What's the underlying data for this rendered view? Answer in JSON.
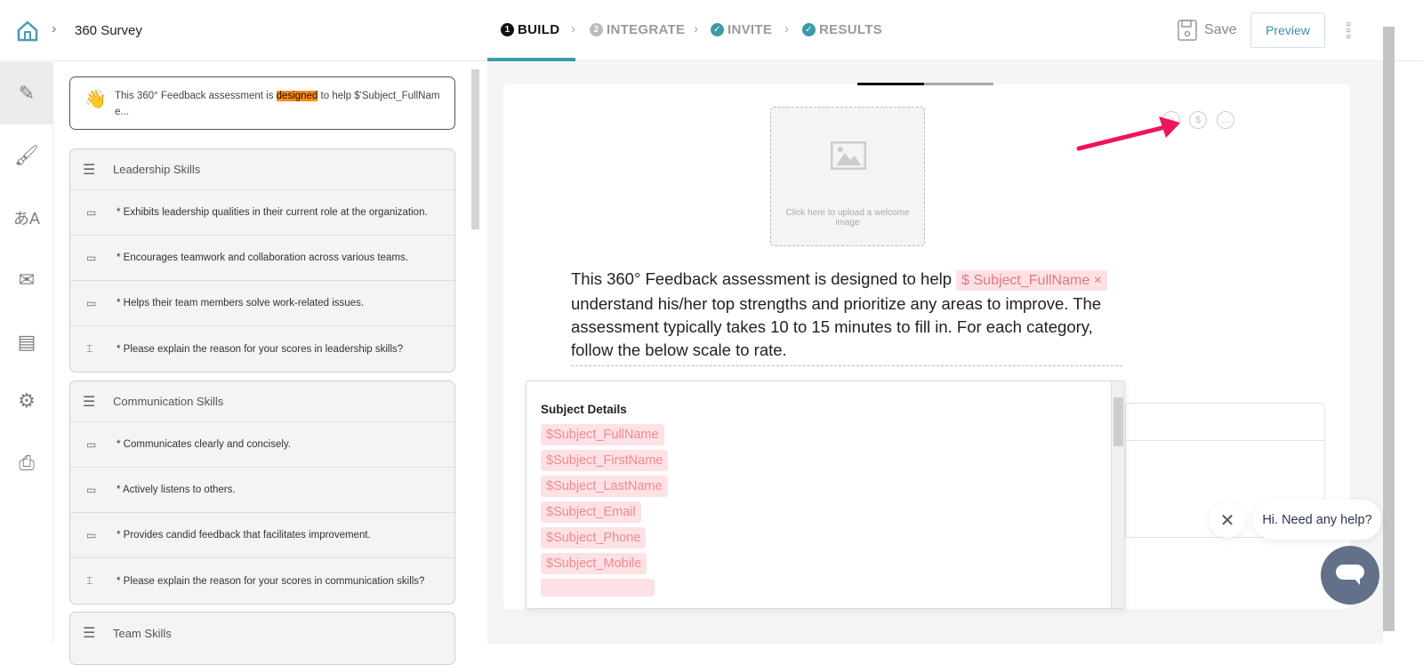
{
  "header": {
    "home_icon": "home-icon",
    "breadcrumb_title": "360 Survey",
    "steps": [
      {
        "num": "1",
        "label": "BUILD",
        "state": "active"
      },
      {
        "num": "2",
        "label": "INTEGRATE",
        "state": "pending"
      },
      {
        "num": "✓",
        "label": "INVITE",
        "state": "done"
      },
      {
        "num": "✓",
        "label": "RESULTS",
        "state": "done"
      }
    ],
    "save_label": "Save",
    "preview_label": "Preview"
  },
  "colors": {
    "accent": "#3b9ba6",
    "chip_bg": "#fde1e4",
    "chip_text": "#f08a94",
    "highlight": "#ff8c1a",
    "arrow": "#f0145a",
    "chat": "#637089"
  },
  "rail": [
    "build-icon",
    "theme-icon",
    "translate-icon",
    "email-icon",
    "report-icon",
    "settings-icon",
    "print-icon"
  ],
  "sidebar": {
    "welcome": {
      "before": "This 360° Feedback assessment is ",
      "highlight": "designed",
      "after": " to help $'Subject_FullNam e..."
    },
    "groups": [
      {
        "title": "Leadership Skills",
        "items": [
          "* Exhibits leadership qualities in their current role at the organization.",
          "* Encourages teamwork and collaboration across various teams.",
          "* Helps their team members solve work-related issues.",
          "* Please explain the reason for your scores in leadership skills?"
        ]
      },
      {
        "title": "Communication Skills",
        "items": [
          "* Communicates clearly and concisely.",
          "* Actively listens to others.",
          "* Provides candid feedback that facilitates improvement.",
          "* Please explain the reason for your scores in communication skills?"
        ]
      },
      {
        "title": "Team Skills",
        "items": []
      }
    ]
  },
  "editor": {
    "upload_text": "Click here to upload a welcome image",
    "text_before": "This 360° Feedback assessment is designed to help ",
    "chip": "Subject_FullName",
    "text_after": "understand his/her top strengths and prioritize any areas to improve. The assessment typically takes 10 to 15 minutes to fill in. For each category, follow the below scale to rate."
  },
  "dropdown": {
    "title": "Subject Details",
    "items": [
      "$Subject_FullName",
      "$Subject_FirstName",
      "$Subject_LastName",
      "$Subject_Email",
      "$Subject_Phone",
      "$Subject_Mobile"
    ]
  },
  "chat": {
    "message": "Hi. Need any help?"
  }
}
